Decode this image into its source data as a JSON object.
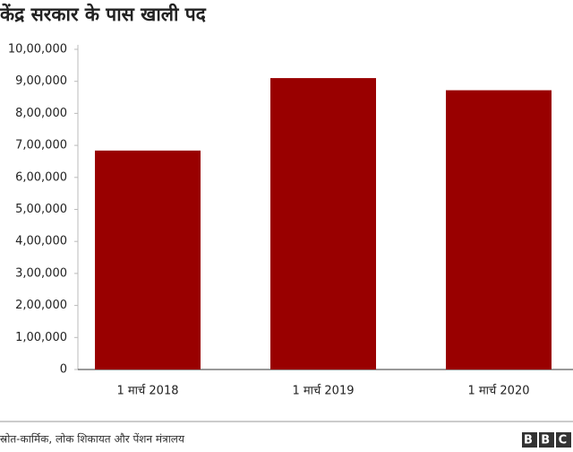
{
  "chart_data": {
    "type": "bar",
    "title": "केंद्र सरकार के पास खाली पद",
    "categories": [
      "1 मार्च 2018",
      "1 मार्च 2019",
      "1 मार्च 2020"
    ],
    "values": [
      683823,
      910153,
      872243
    ],
    "color": "#990000",
    "ylim": [
      0,
      1000000
    ],
    "yticks": [
      0,
      {
        "value": 100000,
        "label": "1,00,000"
      },
      {
        "value": 200000,
        "label": "2,00,000"
      },
      {
        "value": 300000,
        "label": "3,00,000"
      },
      {
        "value": 400000,
        "label": "4,00,000"
      },
      {
        "value": 500000,
        "label": "5,00,000"
      },
      {
        "value": 600000,
        "label": "6,00,000"
      },
      {
        "value": 700000,
        "label": "7,00,000"
      },
      {
        "value": 800000,
        "label": "8,00,000"
      },
      {
        "value": 900000,
        "label": "9,00,000"
      },
      {
        "value": 1000000,
        "label": "10,00,000"
      }
    ],
    "grid": false,
    "source": "स्रोत-कार्मिक, लोक शिकायत और पेंशन मंत्रालय",
    "logo": "BBC"
  }
}
